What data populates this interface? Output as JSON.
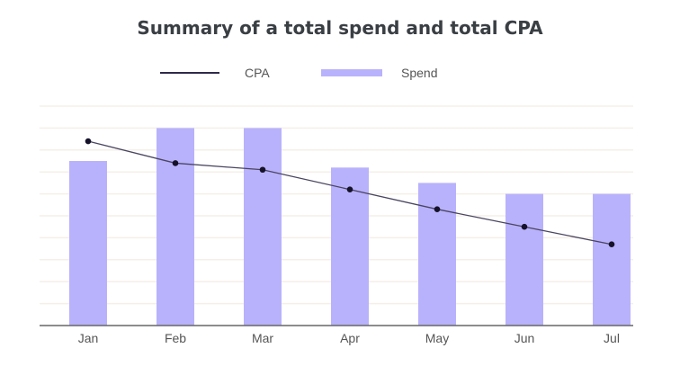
{
  "chart_data": {
    "type": "bar+line",
    "title": "Summary of a total spend and total CPA",
    "categories": [
      "Jan",
      "Feb",
      "Mar",
      "Apr",
      "May",
      "Jun",
      "Jul"
    ],
    "series": [
      {
        "name": "CPA",
        "type": "line",
        "color": "#2f2a4a",
        "values": [
          8.4,
          7.4,
          7.1,
          6.2,
          5.3,
          4.5,
          3.7
        ]
      },
      {
        "name": "Spend",
        "type": "bar",
        "color": "#b8b2fc",
        "values": [
          7.5,
          9.0,
          9.0,
          7.2,
          6.5,
          6.0,
          6.0
        ]
      }
    ],
    "ylim": [
      0,
      10
    ],
    "y_ticks_labeled": false,
    "grid": true,
    "grid_color": "#f6efe9",
    "legend_placement": "top-center"
  }
}
